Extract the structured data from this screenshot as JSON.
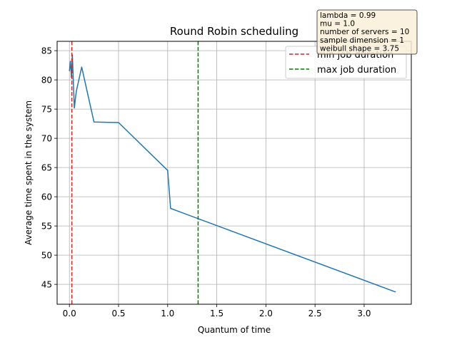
{
  "chart_data": {
    "type": "line",
    "title": "Round Robin scheduling",
    "xlabel": "Quantum of time",
    "ylabel": "Average time spent in the system",
    "xlim": [
      -0.125,
      3.48
    ],
    "ylim": [
      41.6,
      86.6
    ],
    "xticks": [
      0.0,
      0.5,
      1.0,
      1.5,
      2.0,
      2.5,
      3.0
    ],
    "xtick_labels": [
      "0.0",
      "0.5",
      "1.0",
      "1.5",
      "2.0",
      "2.5",
      "3.0"
    ],
    "yticks": [
      45,
      50,
      55,
      60,
      65,
      70,
      75,
      80,
      85
    ],
    "ytick_labels": [
      "45",
      "50",
      "55",
      "60",
      "65",
      "70",
      "75",
      "80",
      "85"
    ],
    "grid": true,
    "series": [
      {
        "color": "#1f77b4",
        "x": [
          0.0,
          0.01,
          0.02,
          0.03,
          0.05,
          0.07,
          0.125,
          0.25,
          0.5,
          1.0,
          1.03,
          3.32
        ],
        "y": [
          81.5,
          83.2,
          80.4,
          84.3,
          75.2,
          78.0,
          82.2,
          72.8,
          72.7,
          64.5,
          58.0,
          43.7
        ]
      }
    ],
    "vlines": [
      {
        "label": "min job duration",
        "x": 0.025,
        "color": "#d62728",
        "style": "dashed"
      },
      {
        "label": "max job duration",
        "x": 1.31,
        "color": "#008000",
        "style": "dashed"
      }
    ],
    "legend_position": "top-right",
    "info_box": {
      "lines": [
        "lambda = 0.99",
        "mu = 1.0",
        "number of servers = 10",
        "sample dimension = 1",
        "weibull shape = 3.75"
      ],
      "background": "#f9eed8",
      "border": "#555555"
    }
  }
}
